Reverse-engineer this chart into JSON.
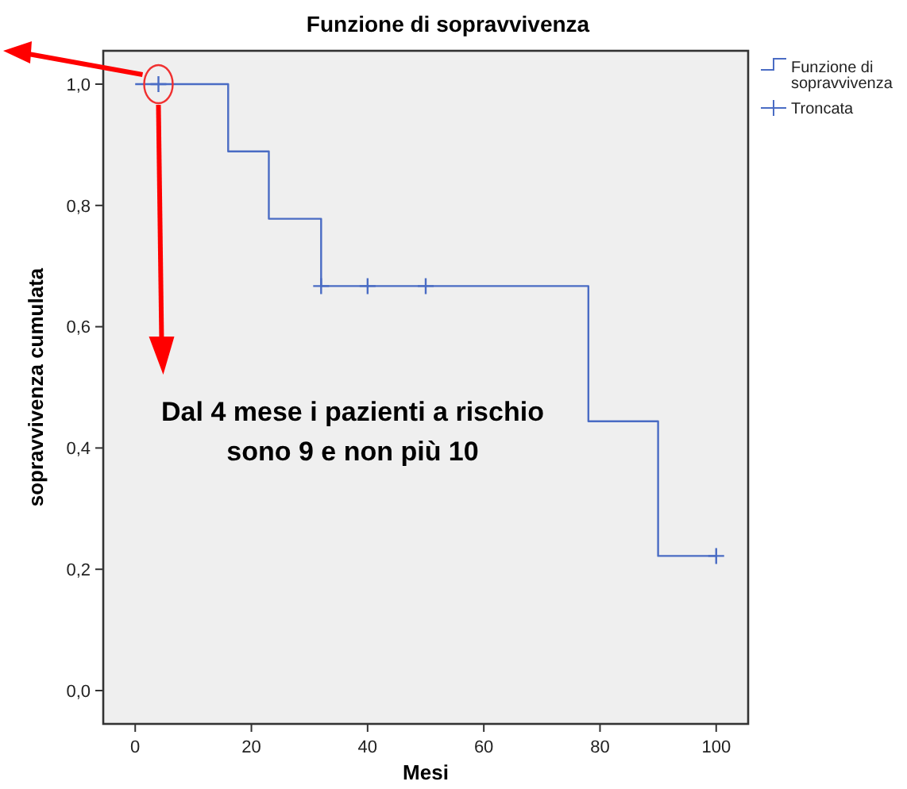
{
  "chart_data": {
    "type": "step",
    "title": "Funzione di sopravvivenza",
    "xlabel": "Mesi",
    "ylabel": "sopravvivenza cumulata",
    "xlim": [
      -5.5,
      105.5
    ],
    "xticks": [
      0,
      20,
      40,
      60,
      80,
      100
    ],
    "ylim": [
      -0.055,
      1.055
    ],
    "yticks": [
      {
        "value": 0,
        "label": "0,0"
      },
      {
        "value": 0.2,
        "label": "0,2"
      },
      {
        "value": 0.4,
        "label": "0,4"
      },
      {
        "value": 0.6,
        "label": "0,6"
      },
      {
        "value": 0.8,
        "label": "0,8"
      },
      {
        "value": 1,
        "label": "1,0"
      }
    ],
    "grid": false,
    "legend": "right",
    "series": [
      {
        "name": "Funzione di sopravvivenza",
        "color": "#4a6cc4",
        "marker": "none",
        "x": [
          0,
          16,
          23,
          32,
          78,
          90,
          100
        ],
        "values": [
          1,
          0.889,
          0.778,
          0.667,
          0.444,
          0.222,
          0.222
        ]
      },
      {
        "name": "Troncata",
        "type": "scatter",
        "color": "#4a6cc4",
        "marker": "cross",
        "x": [
          4,
          32,
          40,
          50,
          100
        ],
        "values": [
          1,
          0.667,
          0.667,
          0.667,
          0.222
        ]
      }
    ],
    "annotations": [
      "Dal 4 mese i pazienti a rischio sono 9 e non più 10"
    ]
  }
}
